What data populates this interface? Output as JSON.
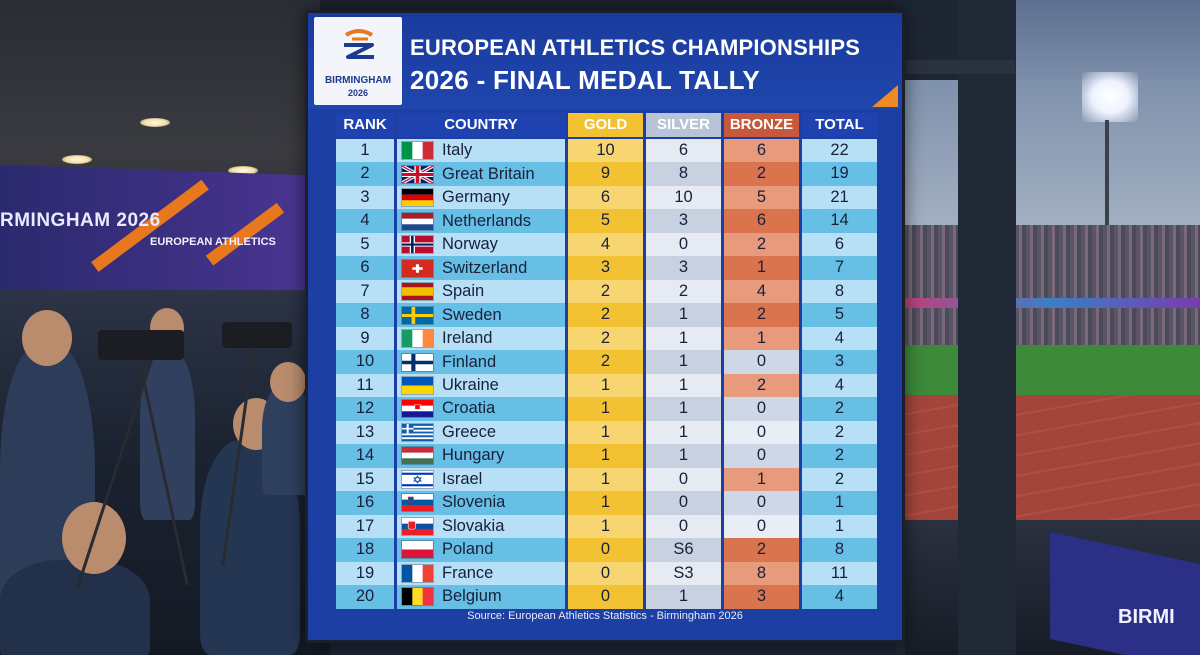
{
  "board": {
    "logo": {
      "city": "BIRMINGHAM",
      "year": "2026"
    },
    "title_line1": "EUROPEAN ATHLETICS CHAMPIONSHIPS",
    "title_line2": "2026 - FINAL MEDAL TALLY",
    "columns": {
      "rank": "RANK",
      "country": "COUNTRY",
      "gold": "GOLD",
      "silver": "SILVER",
      "bronze": "BRONZE",
      "total": "TOTAL"
    },
    "rows": [
      {
        "rank": "1",
        "country": "Italy",
        "flag": "italy-flag",
        "gold": "10",
        "silver": "6",
        "bronze": "6",
        "total": "22"
      },
      {
        "rank": "2",
        "country": "Great Britain",
        "flag": "great-britain-flag",
        "gold": "9",
        "silver": "8",
        "bronze": "2",
        "total": "19"
      },
      {
        "rank": "3",
        "country": "Germany",
        "flag": "germany-flag",
        "gold": "6",
        "silver": "10",
        "bronze": "5",
        "total": "21"
      },
      {
        "rank": "4",
        "country": "Netherlands",
        "flag": "netherlands-flag",
        "gold": "5",
        "silver": "3",
        "bronze": "6",
        "total": "14"
      },
      {
        "rank": "5",
        "country": "Norway",
        "flag": "norway-flag",
        "gold": "4",
        "silver": "0",
        "bronze": "2",
        "total": "6"
      },
      {
        "rank": "6",
        "country": "Switzerland",
        "flag": "switzerland-flag",
        "gold": "3",
        "silver": "3",
        "bronze": "1",
        "total": "7"
      },
      {
        "rank": "7",
        "country": "Spain",
        "flag": "spain-flag",
        "gold": "2",
        "silver": "2",
        "bronze": "4",
        "total": "8"
      },
      {
        "rank": "8",
        "country": "Sweden",
        "flag": "sweden-flag",
        "gold": "2",
        "silver": "1",
        "bronze": "2",
        "total": "5"
      },
      {
        "rank": "9",
        "country": "Ireland",
        "flag": "ireland-flag",
        "gold": "2",
        "silver": "1",
        "bronze": "1",
        "total": "4"
      },
      {
        "rank": "10",
        "country": "Finland",
        "flag": "finland-flag",
        "gold": "2",
        "silver": "1",
        "bronze": "0",
        "total": "3"
      },
      {
        "rank": "11",
        "country": "Ukraine",
        "flag": "ukraine-flag",
        "gold": "1",
        "silver": "1",
        "bronze": "2",
        "total": "4"
      },
      {
        "rank": "12",
        "country": "Croatia",
        "flag": "croatia-flag",
        "gold": "1",
        "silver": "1",
        "bronze": "0",
        "total": "2"
      },
      {
        "rank": "13",
        "country": "Greece",
        "flag": "greece-flag",
        "gold": "1",
        "silver": "1",
        "bronze": "0",
        "total": "2"
      },
      {
        "rank": "14",
        "country": "Hungary",
        "flag": "hungary-flag",
        "gold": "1",
        "silver": "1",
        "bronze": "0",
        "total": "2"
      },
      {
        "rank": "15",
        "country": "Israel",
        "flag": "israel-flag",
        "gold": "1",
        "silver": "0",
        "bronze": "1",
        "total": "2"
      },
      {
        "rank": "16",
        "country": "Slovenia",
        "flag": "slovenia-flag",
        "gold": "1",
        "silver": "0",
        "bronze": "0",
        "total": "1"
      },
      {
        "rank": "17",
        "country": "Slovakia",
        "flag": "slovakia-flag",
        "gold": "1",
        "silver": "0",
        "bronze": "0",
        "total": "1"
      },
      {
        "rank": "18",
        "country": "Poland",
        "flag": "poland-flag",
        "gold": "0",
        "silver": "S6",
        "bronze": "2",
        "total": "8"
      },
      {
        "rank": "19",
        "country": "France",
        "flag": "france-flag",
        "gold": "0",
        "silver": "S3",
        "bronze": "8",
        "total": "11"
      },
      {
        "rank": "20",
        "country": "Belgium",
        "flag": "belgium-flag",
        "gold": "0",
        "silver": "1",
        "bronze": "3",
        "total": "4"
      }
    ],
    "source": "Source: European Athletics Statistics - Birmingham 2026"
  },
  "background": {
    "hall_banner_text": "RMINGHAM 2026",
    "hall_banner_small": "EUROPEAN ATHLETICS",
    "stadium_banner_text": "BIRMI"
  },
  "colors": {
    "screen_blue": "#1d3ea3",
    "gold": "#f2c232",
    "silver": "#c7d1e0",
    "bronze": "#d9744f",
    "accent_orange": "#f08a24"
  }
}
